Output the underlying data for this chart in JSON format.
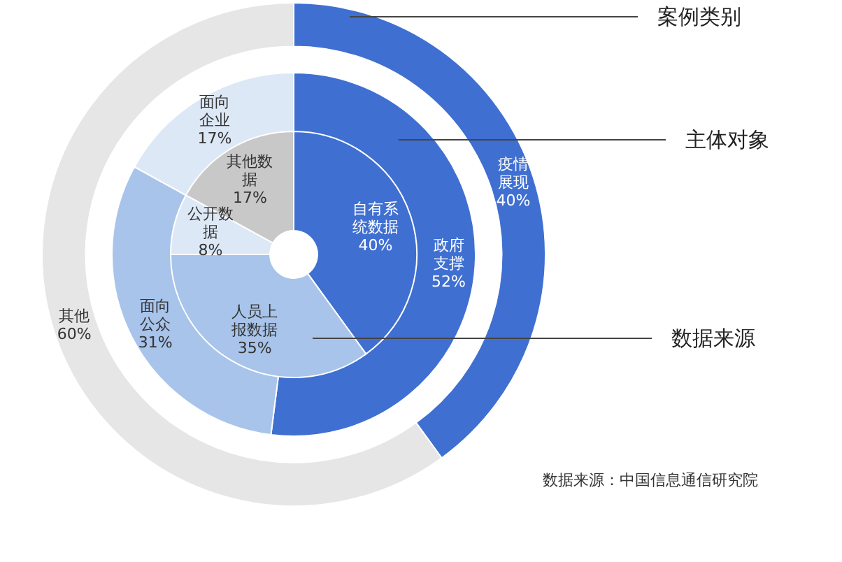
{
  "chart_data": [
    {
      "type": "donut",
      "annotations": [
        "数据来源：中国信息通信研究院"
      ],
      "categories": [
        "疫情展现",
        "其他"
      ],
      "colors": [
        "#3f6fd1",
        "#e6e6e6"
      ],
      "series": [
        {
          "name": "案例类别",
          "values": [
            40,
            60
          ],
          "value_labels": [
            "40%",
            "60%"
          ]
        }
      ]
    },
    {
      "type": "donut",
      "categories": [
        "政府支撑",
        "面向公众",
        "面向企业"
      ],
      "colors": [
        "#3f6fd1",
        "#a8c4ea",
        "#dde8f6"
      ],
      "series": [
        {
          "name": "主体对象",
          "values": [
            52,
            31,
            17
          ],
          "value_labels": [
            "52%",
            "31%",
            "17%"
          ]
        }
      ]
    },
    {
      "type": "donut",
      "categories": [
        "自有系统数据",
        "人员上报数据",
        "公开数据",
        "其他数据"
      ],
      "colors": [
        "#3f6fd1",
        "#a8c4ea",
        "#dde8f6",
        "#c8c8c8"
      ],
      "series": [
        {
          "name": "数据来源",
          "values": [
            40,
            35,
            8,
            17
          ],
          "value_labels": [
            "40%",
            "35%",
            "8%",
            "17%"
          ]
        }
      ]
    }
  ]
}
